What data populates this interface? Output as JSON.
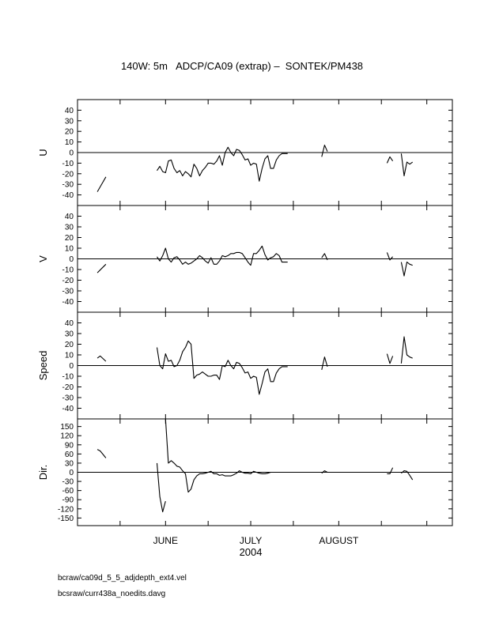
{
  "title": "140W: 5m   ADCP/CA09 (extrap) –  SONTEK/PM438",
  "footnotes": [
    "bcraw/ca09d_5_5_adjdepth_ext4.vel",
    "bcsraw/curr438a_noedits.davg"
  ],
  "chart_data": {
    "type": "line",
    "xlabel": "2004",
    "x_range": [
      "2004-05-01",
      "2004-09-10"
    ],
    "x_ticks": [
      "2004-05-16",
      "2004-06-01",
      "2004-06-16",
      "2004-07-01",
      "2004-07-16",
      "2004-08-01",
      "2004-08-16",
      "2004-09-01"
    ],
    "month_labels": [
      {
        "label": "JUNE",
        "at": "2004-06-01"
      },
      {
        "label": "JULY",
        "at": "2004-07-01"
      },
      {
        "label": "AUGUST",
        "at": "2004-08-01"
      }
    ],
    "panels": [
      {
        "ylabel": "U",
        "ylim": [
          -50,
          50
        ],
        "yticks": [
          40,
          30,
          20,
          10,
          0,
          -10,
          -20,
          -30,
          -40
        ],
        "segments": [
          {
            "x": [
              "2004-05-08",
              "2004-05-11"
            ],
            "y": [
              -37,
              -23
            ]
          },
          {
            "x": [
              "2004-05-29",
              "2004-05-30",
              "2004-05-31",
              "2004-06-01",
              "2004-06-02",
              "2004-06-03",
              "2004-06-04",
              "2004-06-05",
              "2004-06-06",
              "2004-06-07",
              "2004-06-08",
              "2004-06-09",
              "2004-06-10",
              "2004-06-11",
              "2004-06-12",
              "2004-06-13",
              "2004-06-14",
              "2004-06-15",
              "2004-06-16",
              "2004-06-17",
              "2004-06-18",
              "2004-06-19",
              "2004-06-20",
              "2004-06-21",
              "2004-06-22",
              "2004-06-23",
              "2004-06-24",
              "2004-06-25",
              "2004-06-26",
              "2004-06-27",
              "2004-06-28",
              "2004-06-29",
              "2004-06-30",
              "2004-07-01",
              "2004-07-02",
              "2004-07-03",
              "2004-07-04",
              "2004-07-05",
              "2004-07-06",
              "2004-07-07",
              "2004-07-08",
              "2004-07-09",
              "2004-07-10",
              "2004-07-11",
              "2004-07-12",
              "2004-07-13",
              "2004-07-14"
            ],
            "y": [
              -17,
              -13,
              -18,
              -19,
              -8,
              -7,
              -15,
              -19,
              -17,
              -22,
              -18,
              -20,
              -23,
              -11,
              -15,
              -22,
              -17,
              -14,
              -10,
              -10,
              -11,
              -8,
              -3,
              -12,
              0,
              5,
              0,
              -3,
              3,
              2,
              -2,
              -7,
              -6,
              -12,
              -10,
              -11,
              -27,
              -15,
              -6,
              -3,
              -15,
              -15,
              -7,
              -3,
              -1,
              -1,
              -1
            ]
          },
          {
            "x": [
              "2004-07-26",
              "2004-07-27",
              "2004-07-28"
            ],
            "y": [
              -4,
              7,
              1
            ]
          },
          {
            "x": [
              "2004-08-18",
              "2004-08-19",
              "2004-08-20"
            ],
            "y": [
              -10,
              -4,
              -8
            ]
          },
          {
            "x": [
              "2004-08-23",
              "2004-08-24",
              "2004-08-25",
              "2004-08-26",
              "2004-08-27"
            ],
            "y": [
              -1,
              -22,
              -9,
              -11,
              -9
            ]
          }
        ]
      },
      {
        "ylabel": "V",
        "ylim": [
          -50,
          50
        ],
        "yticks": [
          40,
          30,
          20,
          10,
          0,
          -10,
          -20,
          -30,
          -40
        ],
        "segments": [
          {
            "x": [
              "2004-05-08",
              "2004-05-11"
            ],
            "y": [
              -13,
              -5
            ]
          },
          {
            "x": [
              "2004-05-29",
              "2004-05-30",
              "2004-05-31",
              "2004-06-01",
              "2004-06-02",
              "2004-06-03",
              "2004-06-04",
              "2004-06-05",
              "2004-06-06",
              "2004-06-07",
              "2004-06-08",
              "2004-06-09",
              "2004-06-10",
              "2004-06-11",
              "2004-06-12",
              "2004-06-13",
              "2004-06-14",
              "2004-06-15",
              "2004-06-16",
              "2004-06-17",
              "2004-06-18",
              "2004-06-19",
              "2004-06-20",
              "2004-06-21",
              "2004-06-22",
              "2004-06-23",
              "2004-06-24",
              "2004-06-25",
              "2004-06-26",
              "2004-06-27",
              "2004-06-28",
              "2004-06-29",
              "2004-06-30",
              "2004-07-01",
              "2004-07-02",
              "2004-07-03",
              "2004-07-04",
              "2004-07-05",
              "2004-07-06",
              "2004-07-07",
              "2004-07-08",
              "2004-07-09",
              "2004-07-10",
              "2004-07-11",
              "2004-07-12",
              "2004-07-13",
              "2004-07-14"
            ],
            "y": [
              2,
              -2,
              3,
              10,
              0,
              -3,
              1,
              2,
              -1,
              -5,
              -3,
              -5,
              -4,
              -2,
              0,
              3,
              1,
              -2,
              -4,
              1,
              -5,
              -5,
              -2,
              3,
              2,
              3,
              5,
              5,
              6,
              6,
              5,
              1,
              -3,
              -6,
              5,
              5,
              8,
              12,
              4,
              -1,
              1,
              2,
              5,
              3,
              -3,
              -3,
              -3
            ]
          },
          {
            "x": [
              "2004-07-26",
              "2004-07-27",
              "2004-07-28"
            ],
            "y": [
              1,
              5,
              -1
            ]
          },
          {
            "x": [
              "2004-08-18",
              "2004-08-19",
              "2004-08-20"
            ],
            "y": [
              6,
              -1,
              2
            ]
          },
          {
            "x": [
              "2004-08-23",
              "2004-08-24",
              "2004-08-25",
              "2004-08-26",
              "2004-08-27"
            ],
            "y": [
              -3,
              -16,
              -3,
              -5,
              -6
            ]
          }
        ]
      },
      {
        "ylabel": "Speed",
        "ylim": [
          -50,
          50
        ],
        "yticks": [
          40,
          30,
          20,
          10,
          0,
          -10,
          -20,
          -30,
          -40
        ],
        "segments": [
          {
            "x": [
              "2004-05-08",
              "2004-05-09",
              "2004-05-11"
            ],
            "y": [
              7,
              9,
              4
            ]
          },
          {
            "x": [
              "2004-05-29",
              "2004-05-30",
              "2004-05-31",
              "2004-06-01",
              "2004-06-02",
              "2004-06-03",
              "2004-06-04",
              "2004-06-05",
              "2004-06-06",
              "2004-06-07",
              "2004-06-08",
              "2004-06-09",
              "2004-06-10",
              "2004-06-11",
              "2004-06-12",
              "2004-06-13",
              "2004-06-14",
              "2004-06-15",
              "2004-06-16",
              "2004-06-17",
              "2004-06-18",
              "2004-06-19",
              "2004-06-20",
              "2004-06-21",
              "2004-06-22",
              "2004-06-23",
              "2004-06-24",
              "2004-06-25",
              "2004-06-26",
              "2004-06-27",
              "2004-06-28",
              "2004-06-29",
              "2004-06-30",
              "2004-07-01",
              "2004-07-02",
              "2004-07-03",
              "2004-07-04",
              "2004-07-05",
              "2004-07-06",
              "2004-07-07",
              "2004-07-08",
              "2004-07-09",
              "2004-07-10",
              "2004-07-11",
              "2004-07-12",
              "2004-07-13",
              "2004-07-14"
            ],
            "y": [
              17,
              0,
              -3,
              11,
              4,
              5,
              -1,
              0,
              5,
              13,
              17,
              23,
              20,
              -12,
              -9,
              -8,
              -6,
              -8,
              -10,
              -10,
              -9,
              -9,
              -13,
              0,
              -1,
              5,
              0,
              -3,
              3,
              2,
              -2,
              -7,
              -6,
              -12,
              -10,
              -11,
              -27,
              -17,
              -6,
              -3,
              -15,
              -15,
              -7,
              -3,
              -1,
              -1,
              -1
            ]
          },
          {
            "x": [
              "2004-07-26",
              "2004-07-27",
              "2004-07-28"
            ],
            "y": [
              -4,
              8,
              -1
            ]
          },
          {
            "x": [
              "2004-08-18",
              "2004-08-19",
              "2004-08-20"
            ],
            "y": [
              11,
              2,
              9
            ]
          },
          {
            "x": [
              "2004-08-23",
              "2004-08-24",
              "2004-08-25",
              "2004-08-26",
              "2004-08-27"
            ],
            "y": [
              2,
              27,
              10,
              8,
              7
            ]
          }
        ]
      },
      {
        "ylabel": "Dir.",
        "ylim": [
          -175,
          175
        ],
        "yticks": [
          150,
          120,
          90,
          60,
          30,
          0,
          -30,
          -60,
          -90,
          -120,
          -150
        ],
        "segments": [
          {
            "x": [
              "2004-05-08",
              "2004-05-09",
              "2004-05-11"
            ],
            "y": [
              75,
              70,
              47
            ]
          },
          {
            "x": [
              "2004-05-29",
              "2004-05-30",
              "2004-05-31",
              "2004-06-01"
            ],
            "y": [
              30,
              -80,
              -130,
              -95
            ]
          },
          {
            "x": [
              "2004-06-01",
              "2004-06-02",
              "2004-06-03",
              "2004-06-04",
              "2004-06-05",
              "2004-06-06",
              "2004-06-07",
              "2004-06-08",
              "2004-06-09",
              "2004-06-10",
              "2004-06-11",
              "2004-06-12",
              "2004-06-13",
              "2004-06-14",
              "2004-06-15",
              "2004-06-16",
              "2004-06-17",
              "2004-06-18",
              "2004-06-19",
              "2004-06-20",
              "2004-06-21",
              "2004-06-22",
              "2004-06-23",
              "2004-06-24",
              "2004-06-25",
              "2004-06-26",
              "2004-06-27",
              "2004-06-28",
              "2004-06-29",
              "2004-06-30",
              "2004-07-01",
              "2004-07-02",
              "2004-07-03",
              "2004-07-04",
              "2004-07-05",
              "2004-07-06",
              "2004-07-07",
              "2004-07-08",
              "2004-07-09",
              "2004-07-10",
              "2004-07-11",
              "2004-07-12",
              "2004-07-13",
              "2004-07-14"
            ],
            "y": [
              175,
              30,
              38,
              30,
              20,
              17,
              5,
              -5,
              -65,
              -55,
              -25,
              -12,
              -5,
              -5,
              -3,
              0,
              3,
              -5,
              -5,
              -10,
              -8,
              -12,
              -12,
              -12,
              -8,
              -3,
              5,
              0,
              -3,
              -3,
              -5,
              3,
              0,
              -3,
              -5,
              -5,
              -3,
              0,
              0,
              0,
              0,
              0,
              0,
              0
            ]
          },
          {
            "x": [
              "2004-07-26",
              "2004-07-27",
              "2004-07-28"
            ],
            "y": [
              -3,
              5,
              0
            ]
          },
          {
            "x": [
              "2004-08-18",
              "2004-08-19",
              "2004-08-20"
            ],
            "y": [
              -5,
              -5,
              15
            ]
          },
          {
            "x": [
              "2004-08-23",
              "2004-08-24",
              "2004-08-25",
              "2004-08-26",
              "2004-08-27"
            ],
            "y": [
              -3,
              5,
              3,
              -10,
              -25
            ]
          }
        ]
      }
    ]
  }
}
